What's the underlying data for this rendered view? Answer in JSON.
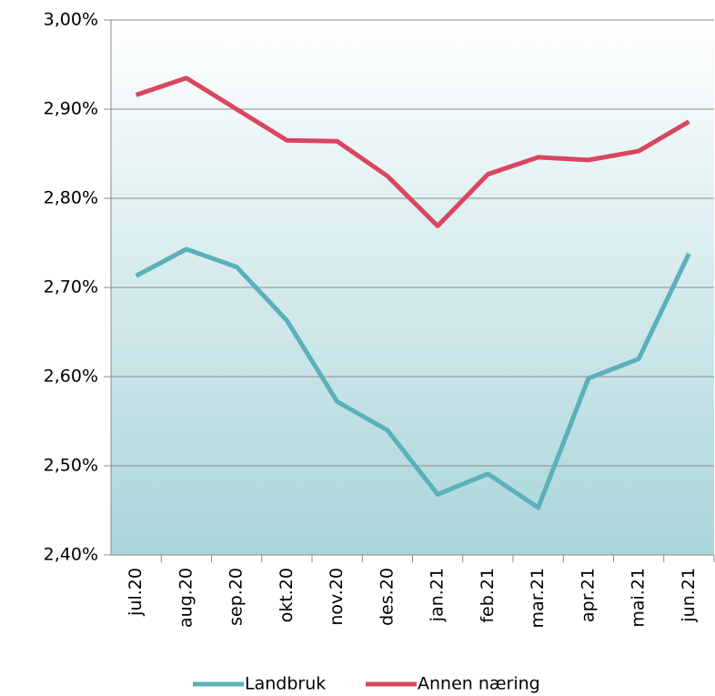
{
  "chart_data": {
    "type": "line",
    "categories": [
      "jul.20",
      "aug.20",
      "sep.20",
      "okt.20",
      "nov.20",
      "des.20",
      "jan.21",
      "feb.21",
      "mar.21",
      "apr.21",
      "mai.21",
      "jun.21"
    ],
    "series": [
      {
        "name": "Landbruk",
        "color": "#5bb0ba",
        "values": [
          2.713,
          2.743,
          2.723,
          2.663,
          2.572,
          2.54,
          2.468,
          2.491,
          2.453,
          2.598,
          2.62,
          2.738
        ]
      },
      {
        "name": "Annen næring",
        "color": "#d9465f",
        "values": [
          2.916,
          2.935,
          2.9,
          2.865,
          2.864,
          2.825,
          2.769,
          2.827,
          2.846,
          2.843,
          2.853,
          2.886
        ]
      }
    ],
    "ylim": [
      2.4,
      3.0
    ],
    "yticks": [
      {
        "value": 2.4,
        "label": "2,40%"
      },
      {
        "value": 2.5,
        "label": "2,50%"
      },
      {
        "value": 2.6,
        "label": "2,60%"
      },
      {
        "value": 2.7,
        "label": "2,70%"
      },
      {
        "value": 2.8,
        "label": "2,80%"
      },
      {
        "value": 2.9,
        "label": "2,90%"
      },
      {
        "value": 3.0,
        "label": "3,00%"
      }
    ],
    "grid": true,
    "legend": "bottom"
  }
}
